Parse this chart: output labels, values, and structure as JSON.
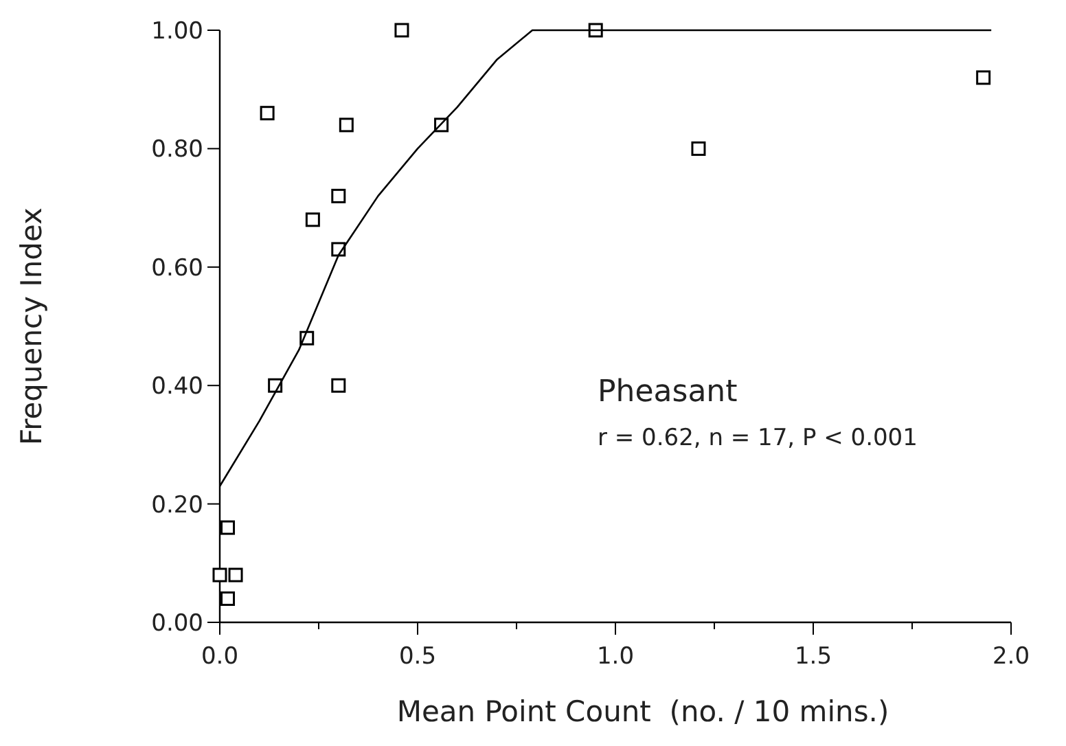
{
  "chart_data": {
    "type": "scatter",
    "xlabel": "Mean Point Count  (no. / 10 mins.)",
    "ylabel": "Frequency Index",
    "xlim": [
      0,
      2
    ],
    "ylim": [
      0,
      1
    ],
    "xticks": [
      {
        "value": 0,
        "label": "0.0"
      },
      {
        "value": 0.25,
        "label": null
      },
      {
        "value": 0.5,
        "label": "0.5"
      },
      {
        "value": 0.75,
        "label": null
      },
      {
        "value": 1,
        "label": "1.0"
      },
      {
        "value": 1.25,
        "label": null
      },
      {
        "value": 1.5,
        "label": "1.5"
      },
      {
        "value": 1.75,
        "label": null
      },
      {
        "value": 2,
        "label": "2.0"
      }
    ],
    "yticks": [
      {
        "value": 0,
        "label": "0.00"
      },
      {
        "value": 0.2,
        "label": "0.20"
      },
      {
        "value": 0.4,
        "label": "0.40"
      },
      {
        "value": 0.6,
        "label": "0.60"
      },
      {
        "value": 0.8,
        "label": "0.80"
      },
      {
        "value": 1,
        "label": "1.00"
      }
    ],
    "grid": false,
    "annotations": [
      "Pheasant",
      "r = 0.62, n = 17, P < 0.001"
    ],
    "series": [
      {
        "marker": "square",
        "color": "#000000",
        "x": [
          0.46,
          0.12,
          0.32,
          0.56,
          0.3,
          0.235,
          0.3,
          0.22,
          0.14,
          0.3,
          0.02,
          0.0,
          0.04,
          0.02,
          0.95,
          1.21,
          1.93
        ],
        "values": [
          1.0,
          0.86,
          0.84,
          0.84,
          0.72,
          0.68,
          0.63,
          0.48,
          0.4,
          0.4,
          0.16,
          0.08,
          0.08,
          0.04,
          1.0,
          0.8,
          0.92
        ]
      },
      {
        "type": "line",
        "marker": "none",
        "line_style": "solid",
        "color": "#000000",
        "x": [
          0,
          0.1,
          0.2,
          0.3,
          0.4,
          0.5,
          0.6,
          0.7,
          0.79,
          1.95
        ],
        "values": [
          0.23,
          0.34,
          0.46,
          0.62,
          0.72,
          0.8,
          0.87,
          0.95,
          1.0,
          1.0
        ]
      }
    ]
  }
}
